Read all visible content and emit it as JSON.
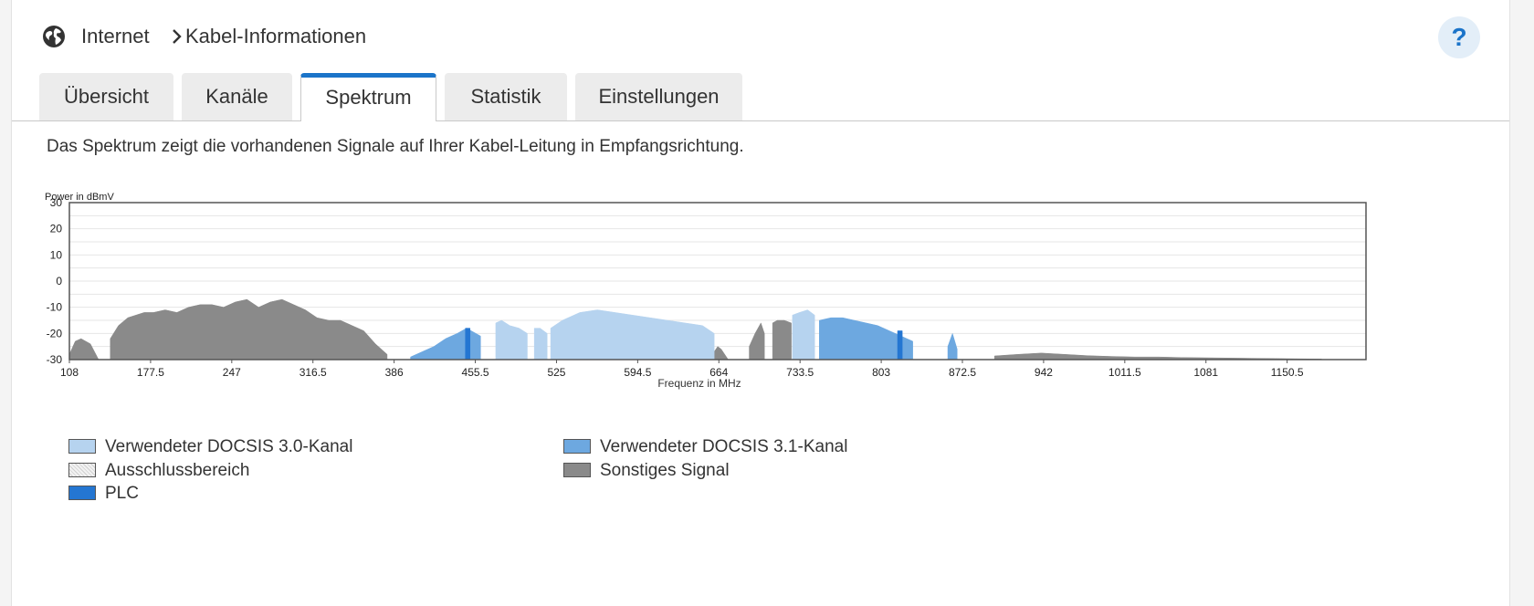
{
  "breadcrumb": {
    "root": "Internet",
    "current": "Kabel-Informationen"
  },
  "help": {
    "label": "?"
  },
  "icons": {
    "globe": "globe-icon",
    "separator": "chevron-right-icon"
  },
  "tabs": [
    {
      "label": "Übersicht",
      "active": false
    },
    {
      "label": "Kanäle",
      "active": false
    },
    {
      "label": "Spektrum",
      "active": true
    },
    {
      "label": "Statistik",
      "active": false
    },
    {
      "label": "Einstellungen",
      "active": false
    }
  ],
  "description": "Das Spektrum zeigt die vorhandenen Signale auf Ihrer Kabel-Leitung in Empfangsrichtung.",
  "colors": {
    "accent": "#1b74c9",
    "docsis30": "#b6d3ef",
    "docsis31": "#6da8e0",
    "plc": "#2476d2",
    "other": "#8a8a8a",
    "exclusion": "#e6e6e6"
  },
  "chart_data": {
    "type": "area",
    "ylabel": "Power in dBmV",
    "xlabel": "Frequenz in MHz",
    "ylim": [
      -30,
      30
    ],
    "xlim": [
      108,
      1218
    ],
    "yticks": [
      30,
      20,
      10,
      0,
      -10,
      -20,
      -30
    ],
    "xticks": [
      108,
      177.5,
      247,
      316.5,
      386,
      455.5,
      525,
      594.5,
      664,
      733.5,
      803,
      872.5,
      942,
      1011.5,
      1081,
      1150.5
    ],
    "grid": true,
    "series": [
      {
        "name": "Sonstiges Signal",
        "color_key": "other",
        "segments": [
          {
            "x": [
              108,
              113,
              118,
              126,
              133
            ],
            "y": [
              -28,
              -23,
              -22,
              -24,
              -30
            ]
          },
          {
            "x": [
              143,
              150,
              158,
              165,
              172,
              180,
              190,
              200,
              210,
              220,
              230,
              240,
              250,
              260,
              270,
              280,
              290,
              300,
              310,
              320,
              330,
              340,
              350,
              360,
              370,
              380
            ],
            "y": [
              -22,
              -17,
              -14,
              -13,
              -12,
              -12,
              -11,
              -12,
              -10,
              -9,
              -9,
              -10,
              -8,
              -7,
              -10,
              -8,
              -7,
              -9,
              -11,
              -14,
              -15,
              -15,
              -17,
              -19,
              -24,
              -28
            ]
          },
          {
            "x": [
              614,
              617,
              620,
              623
            ],
            "y": [
              -18,
              -16,
              -18,
              -30
            ]
          },
          {
            "x": [
              660,
              663,
              666,
              672
            ],
            "y": [
              -27,
              -25,
              -26,
              -30
            ]
          },
          {
            "x": [
              690,
              695,
              700,
              703
            ],
            "y": [
              -25,
              -20,
              -16,
              -20
            ]
          },
          {
            "x": [
              710,
              714,
              720,
              726
            ],
            "y": [
              -16,
              -15,
              -15,
              -16
            ]
          },
          {
            "x": [
              900,
              920,
              940,
              960,
              980,
              1000,
              1020,
              1040,
              1060,
              1080,
              1100,
              1120,
              1140,
              1160,
              1180
            ],
            "y": [
              -28.6,
              -28,
              -27.5,
              -28,
              -28.5,
              -28.8,
              -29,
              -29,
              -29.2,
              -29.3,
              -29.4,
              -29.5,
              -29.6,
              -29.7,
              -29.8
            ]
          }
        ]
      },
      {
        "name": "Verwendeter DOCSIS 3.0-Kanal",
        "color_key": "docsis30",
        "segments": [
          {
            "x": [
              473,
              478,
              485,
              493,
              500
            ],
            "y": [
              -16,
              -15,
              -17,
              -18,
              -20
            ]
          },
          {
            "x": [
              506,
              511,
              517
            ],
            "y": [
              -18,
              -18,
              -20
            ]
          },
          {
            "x": [
              520,
              530,
              545,
              560,
              575,
              590,
              605,
              620,
              635,
              650,
              660
            ],
            "y": [
              -18,
              -15,
              -12,
              -11,
              -12,
              -13,
              -14,
              -15,
              -16,
              -17,
              -20
            ]
          },
          {
            "x": [
              727,
              733,
              740,
              746
            ],
            "y": [
              -13,
              -12,
              -11,
              -13
            ]
          }
        ]
      },
      {
        "name": "Verwendeter DOCSIS 3.1-Kanal",
        "color_key": "docsis31",
        "segments": [
          {
            "x": [
              400,
              410,
              420,
              430,
              440,
              448,
              460
            ],
            "y": [
              -29,
              -27,
              -25,
              -22,
              -20,
              -18,
              -21
            ]
          },
          {
            "x": [
              750,
              760,
              770,
              780,
              790,
              800,
              810,
              820,
              830
            ],
            "y": [
              -15,
              -14,
              -14,
              -15,
              -16,
              -17,
              -19,
              -21,
              -23
            ]
          },
          {
            "x": [
              860,
              864,
              868
            ],
            "y": [
              -25,
              -20,
              -26
            ]
          }
        ]
      },
      {
        "name": "PLC",
        "color_key": "plc",
        "segments": [
          {
            "x": [
              447,
              451
            ],
            "y": [
              -18,
              -18
            ]
          },
          {
            "x": [
              817,
              821
            ],
            "y": [
              -19,
              -19
            ]
          }
        ]
      }
    ],
    "legend": [
      {
        "label": "Verwendeter DOCSIS 3.0-Kanal",
        "color_key": "docsis30"
      },
      {
        "label": "Verwendeter DOCSIS 3.1-Kanal",
        "color_key": "docsis31"
      },
      {
        "label": "Ausschlussbereich",
        "color_key": "exclusion"
      },
      {
        "label": "Sonstiges Signal",
        "color_key": "other"
      },
      {
        "label": "PLC",
        "color_key": "plc"
      }
    ]
  }
}
